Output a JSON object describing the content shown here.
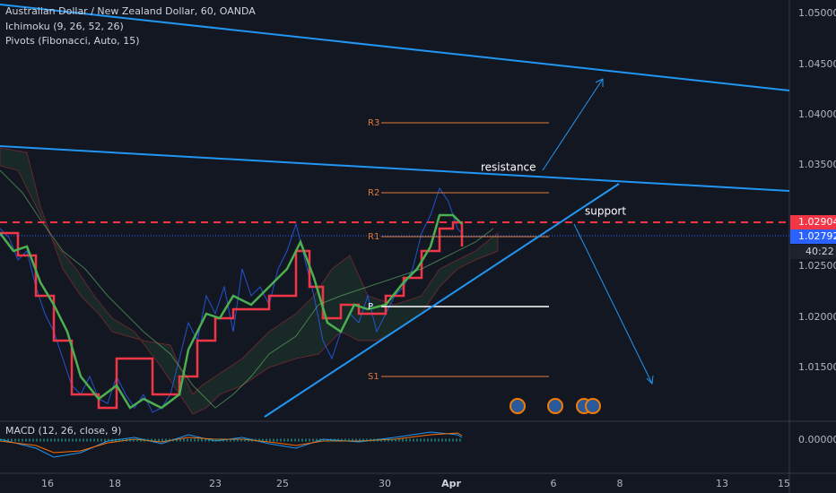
{
  "header": {
    "title": "Australian Dollar / New Zealand Dollar, 60, OANDA",
    "indicators": [
      "Ichimoku (9, 26, 52, 26)",
      "Pivots (Fibonacci, Auto, 15)"
    ]
  },
  "price_axis": {
    "labels": [
      "1.05000",
      "1.04500",
      "1.04000",
      "1.03500",
      "1.02500",
      "1.02000",
      "1.01500"
    ],
    "current_price": "1.02904",
    "last_price": "1.02792",
    "countdown": "40:22"
  },
  "pivots": [
    "R3",
    "R2",
    "R1",
    "P",
    "S1"
  ],
  "annotations": [
    "resistance",
    "support"
  ],
  "macd": {
    "title": "MACD (12, 26, close, 9)",
    "axis_label": "0.00000"
  },
  "time_axis": {
    "labels": [
      "16",
      "18",
      "23",
      "25",
      "30",
      "Apr",
      "6",
      "8",
      "13",
      "15"
    ]
  }
}
